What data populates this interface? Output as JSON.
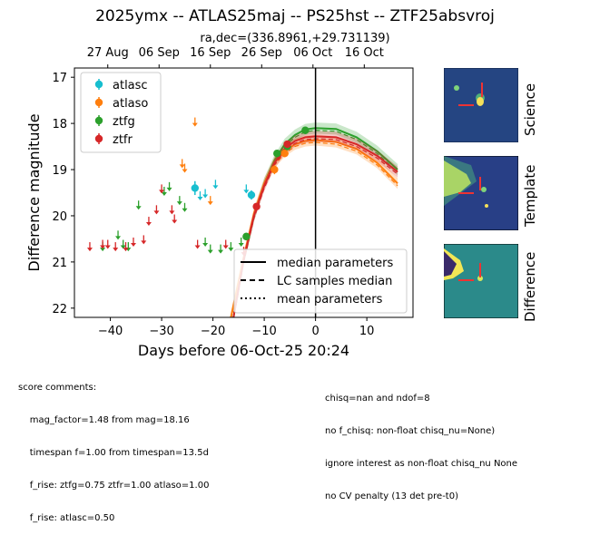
{
  "title": "2025ymx -- ATLAS25maj -- PS25hst -- ZTF25absvroj",
  "subtitle": "ra,dec=(336.8961,+29.731139)",
  "stamps": [
    {
      "label": "Science"
    },
    {
      "label": "Template"
    },
    {
      "label": "Difference"
    }
  ],
  "comments_left": [
    "score comments:",
    "    mag_factor=1.48 from mag=18.16",
    "    timespan f=1.00 from timespan=13.5d",
    "    f_rise: ztfg=0.75 ztfr=1.00 atlaso=1.00",
    "    f_rise: atlasc=0.50"
  ],
  "comments_right": [
    "chisq=nan and ndof=8",
    "no f_chisq: non-float chisq_nu=None)",
    "ignore interest as non-float chisq_nu None",
    "no CV penalty (13 det pre-t0)"
  ],
  "chart_data": {
    "type": "scatter",
    "xlabel": "Days before 06-Oct-25 20:24",
    "ylabel": "Difference magnitude",
    "xlim": [
      -47,
      19
    ],
    "ylim": [
      22.2,
      16.8
    ],
    "y_inverted": true,
    "x_ticks": [
      -40,
      -30,
      -20,
      -10,
      0,
      10
    ],
    "y_ticks": [
      17,
      18,
      19,
      20,
      21,
      22
    ],
    "top_axis_ticks": [
      {
        "x": -40.5,
        "label": "27 Aug"
      },
      {
        "x": -30.5,
        "label": "06 Sep"
      },
      {
        "x": -20.5,
        "label": "16 Sep"
      },
      {
        "x": -10.5,
        "label": "26 Sep"
      },
      {
        "x": -0.5,
        "label": "06 Oct"
      },
      {
        "x": 9.5,
        "label": "16 Oct"
      }
    ],
    "vline_x": 0,
    "legend_position": "upper left",
    "series": [
      {
        "name": "atlasc",
        "color": "#17becf",
        "detections": [
          {
            "x": -23.5,
            "y": 19.4,
            "err": 0.15
          },
          {
            "x": -12.5,
            "y": 19.55,
            "err": 0.1
          }
        ],
        "upper_limits": [
          {
            "x": -22.5,
            "y": 19.55
          },
          {
            "x": -21.5,
            "y": 19.5
          },
          {
            "x": -19.5,
            "y": 19.3
          },
          {
            "x": -13.5,
            "y": 19.4
          }
        ]
      },
      {
        "name": "atlaso",
        "color": "#ff7f0e",
        "detections": [
          {
            "x": -8.0,
            "y": 19.0,
            "err": 0.1
          },
          {
            "x": -6.0,
            "y": 18.65,
            "err": 0.08
          }
        ],
        "upper_limits": [
          {
            "x": -23.5,
            "y": 17.95
          },
          {
            "x": -26.0,
            "y": 18.85
          },
          {
            "x": -25.5,
            "y": 18.95
          },
          {
            "x": -20.5,
            "y": 19.65
          }
        ]
      },
      {
        "name": "ztfg",
        "color": "#2ca02c",
        "detections": [
          {
            "x": -13.5,
            "y": 20.45,
            "err": 0.08
          },
          {
            "x": -7.5,
            "y": 18.65,
            "err": 0.05
          },
          {
            "x": -5.5,
            "y": 18.5,
            "err": 0.05
          },
          {
            "x": -2.0,
            "y": 18.15,
            "err": 0.05
          }
        ],
        "upper_limits": [
          {
            "x": -41.5,
            "y": 20.65
          },
          {
            "x": -38.5,
            "y": 20.4
          },
          {
            "x": -37.5,
            "y": 20.6
          },
          {
            "x": -36.5,
            "y": 20.65
          },
          {
            "x": -34.5,
            "y": 19.75
          },
          {
            "x": -29.5,
            "y": 19.45
          },
          {
            "x": -28.5,
            "y": 19.35
          },
          {
            "x": -26.5,
            "y": 19.65
          },
          {
            "x": -25.5,
            "y": 19.8
          },
          {
            "x": -21.5,
            "y": 20.55
          },
          {
            "x": -20.5,
            "y": 20.7
          },
          {
            "x": -18.5,
            "y": 20.7
          },
          {
            "x": -16.5,
            "y": 20.65
          },
          {
            "x": -14.5,
            "y": 20.55
          }
        ]
      },
      {
        "name": "ztfr",
        "color": "#d62728",
        "detections": [
          {
            "x": -11.5,
            "y": 19.8,
            "err": 0.07
          },
          {
            "x": -5.5,
            "y": 18.45,
            "err": 0.04
          }
        ],
        "upper_limits": [
          {
            "x": -44.0,
            "y": 20.65
          },
          {
            "x": -41.5,
            "y": 20.6
          },
          {
            "x": -40.5,
            "y": 20.6
          },
          {
            "x": -39.0,
            "y": 20.65
          },
          {
            "x": -37.0,
            "y": 20.65
          },
          {
            "x": -35.5,
            "y": 20.55
          },
          {
            "x": -33.5,
            "y": 20.5
          },
          {
            "x": -32.5,
            "y": 20.1
          },
          {
            "x": -31.0,
            "y": 19.85
          },
          {
            "x": -30.0,
            "y": 19.4
          },
          {
            "x": -28.0,
            "y": 19.85
          },
          {
            "x": -27.5,
            "y": 20.05
          },
          {
            "x": -23.0,
            "y": 20.6
          },
          {
            "x": -17.5,
            "y": 20.6
          },
          {
            "x": -14.0,
            "y": 20.75
          }
        ]
      }
    ],
    "model_curves": [
      {
        "color": "#2ca02c",
        "points": [
          [
            -16,
            22.2
          ],
          [
            -14,
            20.95
          ],
          [
            -12,
            20.0
          ],
          [
            -10,
            19.3
          ],
          [
            -8,
            18.8
          ],
          [
            -6,
            18.45
          ],
          [
            -4,
            18.25
          ],
          [
            -2,
            18.13
          ],
          [
            0,
            18.1
          ],
          [
            4,
            18.12
          ],
          [
            8,
            18.3
          ],
          [
            12,
            18.6
          ],
          [
            16,
            19.0
          ]
        ]
      },
      {
        "color": "#ff7f0e",
        "points": [
          [
            -16.5,
            22.2
          ],
          [
            -14,
            20.9
          ],
          [
            -12,
            19.95
          ],
          [
            -10,
            19.3
          ],
          [
            -8,
            18.85
          ],
          [
            -6,
            18.6
          ],
          [
            -4,
            18.45
          ],
          [
            -2,
            18.38
          ],
          [
            0,
            18.36
          ],
          [
            4,
            18.4
          ],
          [
            8,
            18.55
          ],
          [
            12,
            18.85
          ],
          [
            16,
            19.3
          ]
        ]
      },
      {
        "color": "#d62728",
        "points": [
          [
            -16,
            22.2
          ],
          [
            -14,
            20.95
          ],
          [
            -12,
            20.0
          ],
          [
            -10,
            19.35
          ],
          [
            -8,
            18.85
          ],
          [
            -6,
            18.55
          ],
          [
            -4,
            18.38
          ],
          [
            -2,
            18.3
          ],
          [
            0,
            18.28
          ],
          [
            4,
            18.3
          ],
          [
            8,
            18.45
          ],
          [
            12,
            18.7
          ],
          [
            16,
            19.05
          ]
        ]
      }
    ],
    "line_legend": [
      {
        "label": "median parameters",
        "dash": "solid"
      },
      {
        "label": "LC samples median",
        "dash": "dashed"
      },
      {
        "label": "mean parameters",
        "dash": "dotted"
      }
    ]
  }
}
